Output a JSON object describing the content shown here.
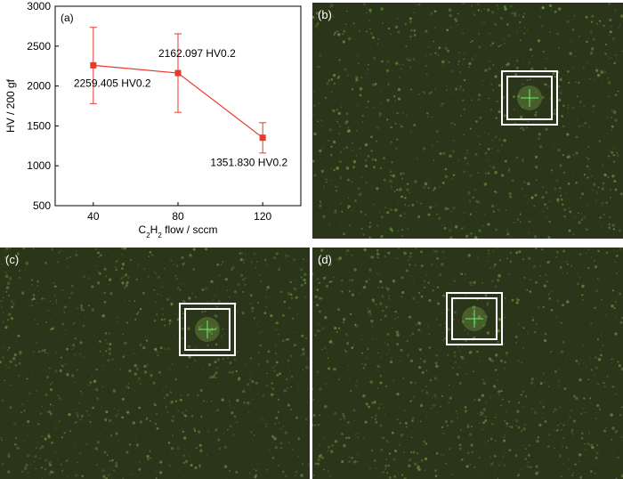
{
  "chart_data": {
    "type": "line",
    "panel_label": "(a)",
    "x": [
      40,
      80,
      120
    ],
    "y": [
      2259.405,
      2162.097,
      1351.83
    ],
    "err_low": [
      1780,
      1670,
      1160
    ],
    "err_high": [
      2735,
      2655,
      1540
    ],
    "data_labels": [
      "2259.405 HV0.2",
      "2162.097 HV0.2",
      "1351.830 HV0.2"
    ],
    "xticks": [
      40,
      80,
      120
    ],
    "yticks": [
      500,
      1000,
      1500,
      2000,
      2500,
      3000
    ],
    "xlim": [
      22,
      138
    ],
    "ylim": [
      500,
      3000
    ],
    "xlabel_parts": [
      "C",
      "2",
      "H",
      "2",
      " flow / sccm"
    ],
    "ylabel": "HV / 200 gf",
    "grid": false,
    "legend": "none",
    "series_color": "#e8392d"
  },
  "photos": {
    "b": {
      "label": "(b)"
    },
    "c": {
      "label": "(c)"
    },
    "d": {
      "label": "(d)"
    }
  },
  "colors": {
    "photo_base": "#2b3519",
    "speckle": "#7fae4e",
    "frame": "#ffffff",
    "indent_cross": "#6cf06c"
  }
}
